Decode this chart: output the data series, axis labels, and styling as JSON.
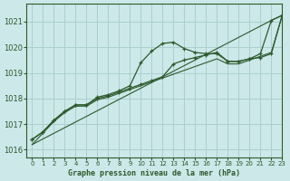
{
  "title": "Graphe pression niveau de la mer (hPa)",
  "bg_color": "#cce8e8",
  "grid_color": "#aacfcf",
  "line_color": "#2d5a2d",
  "xlim": [
    -0.5,
    23
  ],
  "ylim": [
    1015.7,
    1021.7
  ],
  "yticks": [
    1016,
    1017,
    1018,
    1019,
    1020,
    1021
  ],
  "xticks": [
    0,
    1,
    2,
    3,
    4,
    5,
    6,
    7,
    8,
    9,
    10,
    11,
    12,
    13,
    14,
    15,
    16,
    17,
    18,
    19,
    20,
    21,
    22,
    23
  ],
  "series1_x": [
    0,
    1,
    2,
    3,
    4,
    5,
    6,
    7,
    8,
    9,
    10,
    11,
    12,
    13,
    14,
    15,
    16,
    17,
    18,
    19,
    20,
    21,
    22,
    23
  ],
  "series1_y": [
    1016.4,
    1016.7,
    1017.15,
    1017.5,
    1017.75,
    1017.75,
    1018.05,
    1018.15,
    1018.3,
    1018.5,
    1019.4,
    1019.85,
    1020.15,
    1020.2,
    1019.95,
    1019.8,
    1019.75,
    1019.75,
    1019.45,
    1019.45,
    1019.55,
    1019.75,
    1021.05,
    1021.25
  ],
  "series2_x": [
    0,
    1,
    2,
    3,
    4,
    5,
    6,
    7,
    8,
    9,
    10,
    11,
    12,
    13,
    14,
    15,
    16,
    17,
    18,
    19,
    20,
    21,
    22,
    23
  ],
  "series2_y": [
    1016.4,
    1016.7,
    1017.15,
    1017.5,
    1017.75,
    1017.75,
    1018.0,
    1018.1,
    1018.25,
    1018.4,
    1018.55,
    1018.7,
    1018.85,
    1019.35,
    1019.5,
    1019.6,
    1019.7,
    1019.8,
    1019.45,
    1019.45,
    1019.55,
    1019.6,
    1019.75,
    1021.25
  ],
  "series3_x": [
    0,
    1,
    2,
    3,
    4,
    5,
    6,
    7,
    8,
    9,
    10,
    11,
    12,
    13,
    14,
    15,
    16,
    17,
    18,
    19,
    20,
    21,
    22,
    23
  ],
  "series3_y": [
    1016.2,
    1016.65,
    1017.1,
    1017.45,
    1017.7,
    1017.7,
    1017.95,
    1018.05,
    1018.2,
    1018.35,
    1018.5,
    1018.65,
    1018.8,
    1018.95,
    1019.1,
    1019.25,
    1019.4,
    1019.55,
    1019.35,
    1019.35,
    1019.5,
    1019.65,
    1019.8,
    1021.25
  ],
  "series4_x": [
    0,
    22,
    23
  ],
  "series4_y": [
    1016.2,
    1021.05,
    1021.25
  ]
}
